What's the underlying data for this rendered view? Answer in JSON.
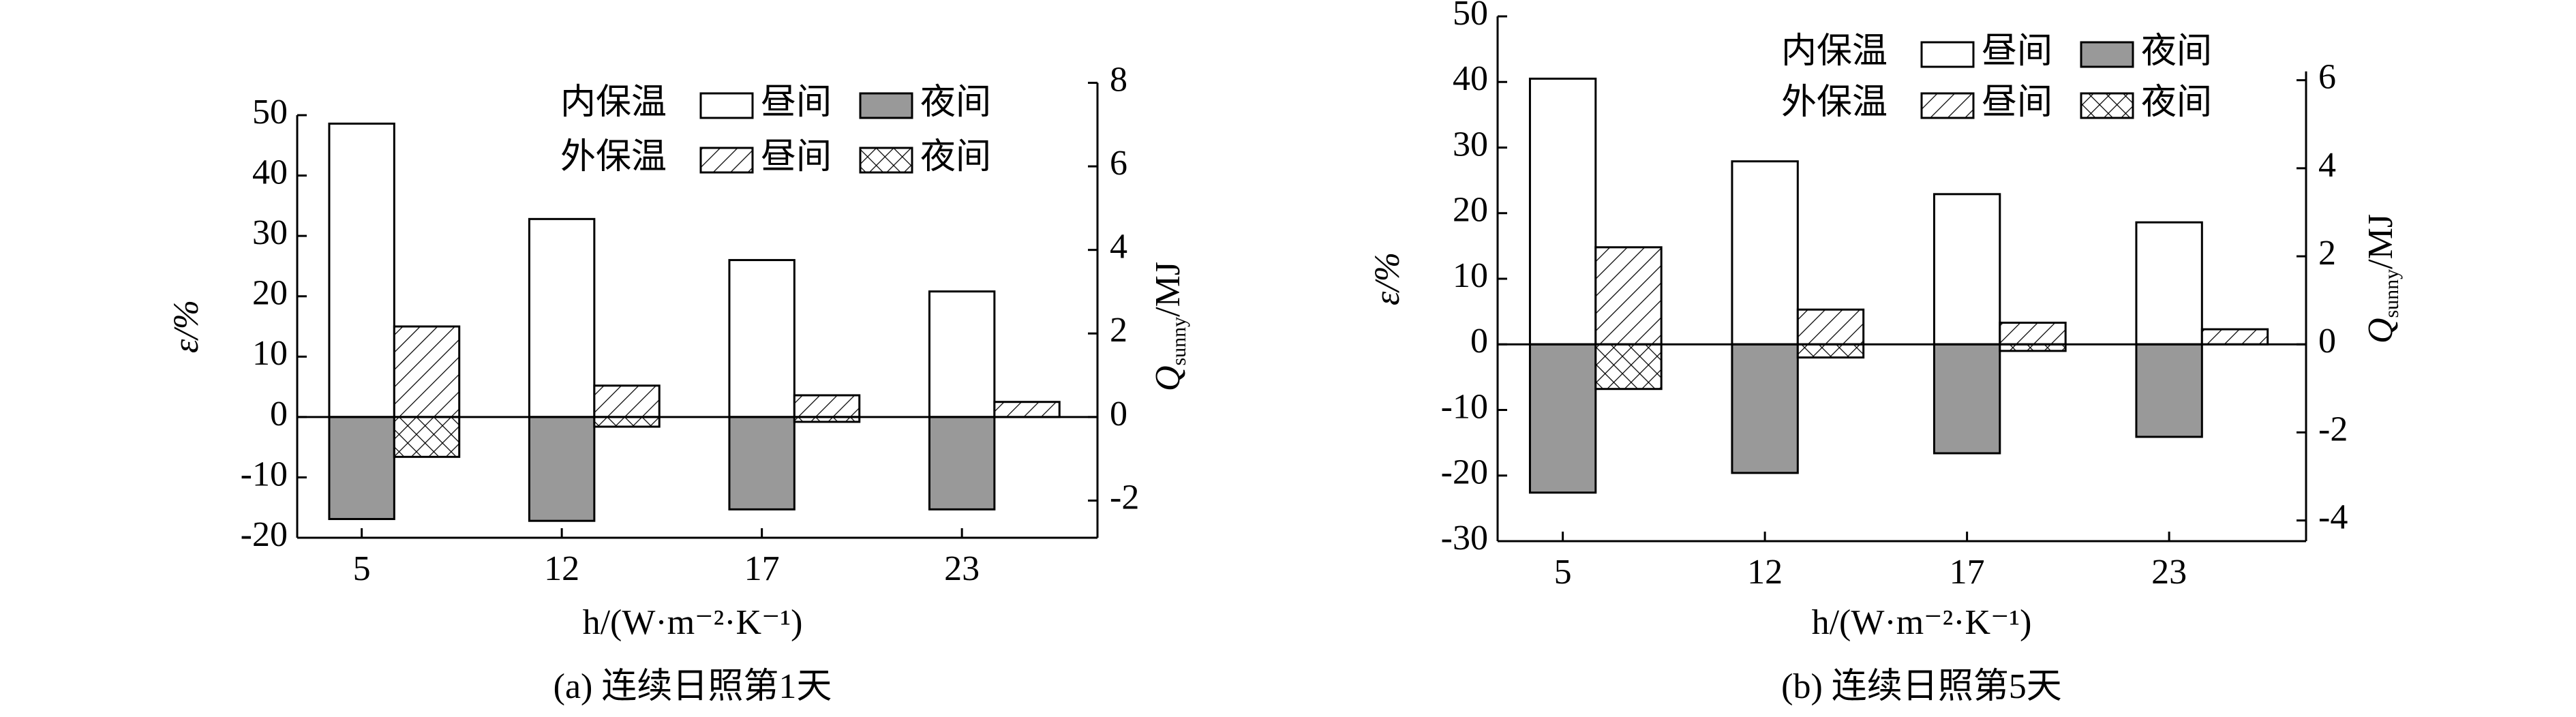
{
  "chart_data": [
    {
      "type": "bar",
      "caption": "(a) 连续日照第1天",
      "ylabel": "ε/%",
      "y2label": "Q",
      "y2label_subscript": "sunny",
      "y2label_suffix": "/MJ",
      "xlabel": "h/(W·m⁻²·K⁻¹)",
      "categories": [
        "5",
        "12",
        "17",
        "23"
      ],
      "legend_rows": [
        "内保温",
        "外保温"
      ],
      "series": [
        {
          "name": "昼间",
          "color": "#ffffff",
          "values": [
            48.6,
            32.8,
            26.0,
            20.8
          ]
        },
        {
          "name": "夜间",
          "color": "#999999",
          "values": [
            -16.9,
            -17.2,
            -15.3,
            -15.3
          ]
        },
        {
          "name": "昼间",
          "color": "#ffffff",
          "pattern": "hatch",
          "values": [
            15.0,
            5.2,
            3.6,
            2.5
          ]
        },
        {
          "name": "夜间",
          "color": "#ffffff",
          "pattern": "crosshatch",
          "values": [
            -6.6,
            -1.6,
            -0.8,
            0
          ]
        }
      ],
      "ylim": [
        -20,
        50
      ],
      "yticks": [
        -20,
        -10,
        0,
        10,
        20,
        30,
        40,
        50
      ],
      "y2lim": [
        -2.89,
        8
      ],
      "y2ticks": [
        -2,
        0,
        2,
        4,
        6,
        8
      ]
    },
    {
      "type": "bar",
      "caption": "(b) 连续日照第5天",
      "ylabel": "ε/%",
      "y2label": "Q",
      "y2label_subscript": "sunny",
      "y2label_suffix": "/MJ",
      "xlabel": "h/(W·m⁻²·K⁻¹)",
      "categories": [
        "5",
        "12",
        "17",
        "23"
      ],
      "legend_rows": [
        "内保温",
        "外保温"
      ],
      "series": [
        {
          "name": "昼间",
          "color": "#ffffff",
          "values": [
            40.5,
            27.9,
            22.9,
            18.6
          ]
        },
        {
          "name": "夜间",
          "color": "#999999",
          "values": [
            -22.6,
            -19.6,
            -16.6,
            -14.1
          ]
        },
        {
          "name": "昼间",
          "color": "#ffffff",
          "pattern": "hatch",
          "values": [
            14.8,
            5.3,
            3.3,
            2.3
          ]
        },
        {
          "name": "夜间",
          "color": "#ffffff",
          "pattern": "crosshatch",
          "values": [
            -6.8,
            -2.0,
            -1.0,
            0
          ]
        }
      ],
      "ylim": [
        -30,
        50
      ],
      "yticks": [
        -30,
        -20,
        -10,
        0,
        10,
        20,
        30,
        40,
        50
      ],
      "y2lim": [
        -4.47,
        6.2
      ],
      "y2ticks": [
        -4,
        -2,
        0,
        2,
        4,
        6
      ]
    }
  ]
}
